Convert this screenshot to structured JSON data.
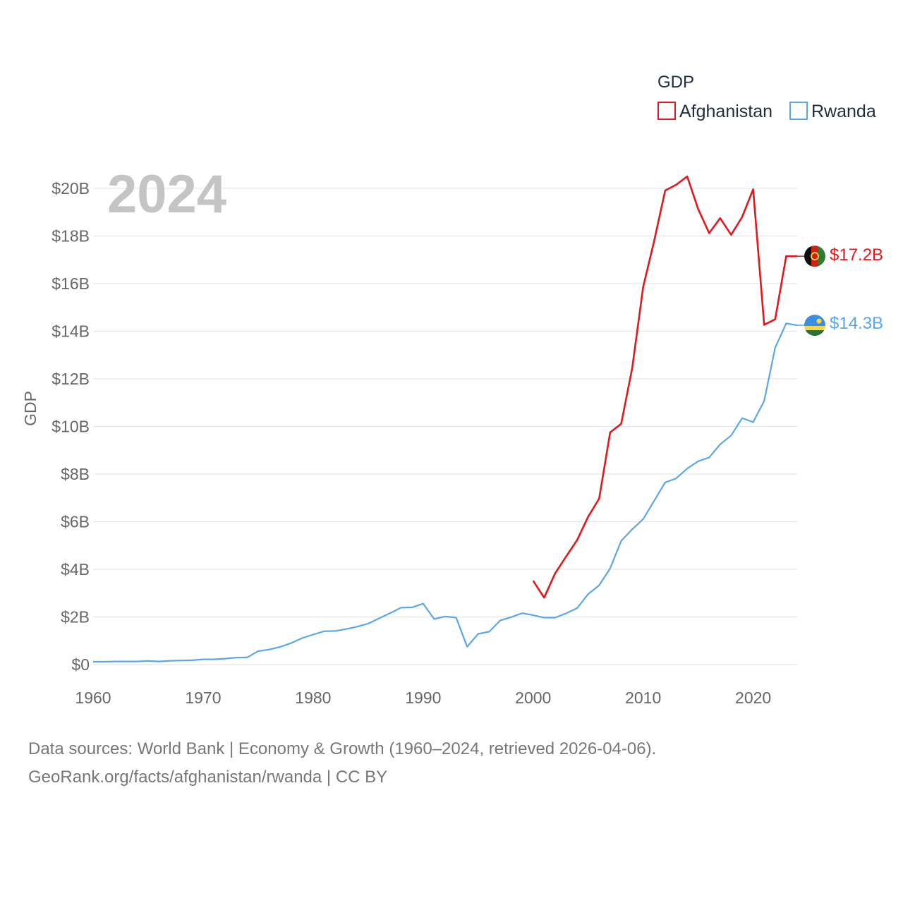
{
  "chart_data": {
    "type": "line",
    "ylabel": "GDP",
    "current_year_label": "2024",
    "legend_title": "GDP",
    "ylim": [
      0,
      20
    ],
    "xlim": [
      1960,
      2024
    ],
    "y_ticks": [
      {
        "value": 0,
        "label": "$0"
      },
      {
        "value": 2,
        "label": "$2B"
      },
      {
        "value": 4,
        "label": "$4B"
      },
      {
        "value": 6,
        "label": "$6B"
      },
      {
        "value": 8,
        "label": "$8B"
      },
      {
        "value": 10,
        "label": "$10B"
      },
      {
        "value": 12,
        "label": "$12B"
      },
      {
        "value": 14,
        "label": "$14B"
      },
      {
        "value": 16,
        "label": "$16B"
      },
      {
        "value": 18,
        "label": "$18B"
      },
      {
        "value": 20,
        "label": "$20B"
      }
    ],
    "x_ticks": [
      {
        "value": 1960,
        "label": "1960"
      },
      {
        "value": 1970,
        "label": "1970"
      },
      {
        "value": 1980,
        "label": "1980"
      },
      {
        "value": 1990,
        "label": "1990"
      },
      {
        "value": 2000,
        "label": "2000"
      },
      {
        "value": 2010,
        "label": "2010"
      },
      {
        "value": 2020,
        "label": "2020"
      }
    ],
    "series": [
      {
        "name": "Afghanistan",
        "color": "#e8161b",
        "end_label": "$17.2B",
        "flag": "afghanistan-flag",
        "x": [
          2000,
          2001,
          2002,
          2003,
          2004,
          2005,
          2006,
          2007,
          2008,
          2009,
          2010,
          2011,
          2012,
          2013,
          2014,
          2015,
          2016,
          2017,
          2018,
          2019,
          2020,
          2021,
          2022,
          2023,
          2024
        ],
        "values": [
          3.52,
          2.81,
          3.83,
          4.54,
          5.23,
          6.21,
          6.97,
          9.75,
          10.11,
          12.44,
          15.86,
          17.8,
          19.91,
          20.15,
          20.5,
          19.13,
          18.12,
          18.75,
          18.05,
          18.8,
          19.96,
          14.27,
          14.5,
          17.15,
          17.15
        ]
      },
      {
        "name": "Rwanda",
        "color": "#5ba7e6",
        "end_label": "$14.3B",
        "flag": "rwanda-flag",
        "x": [
          1960,
          1961,
          1962,
          1963,
          1964,
          1965,
          1966,
          1967,
          1968,
          1969,
          1970,
          1971,
          1972,
          1973,
          1974,
          1975,
          1976,
          1977,
          1978,
          1979,
          1980,
          1981,
          1982,
          1983,
          1984,
          1985,
          1986,
          1987,
          1988,
          1989,
          1990,
          1991,
          1992,
          1993,
          1994,
          1995,
          1996,
          1997,
          1998,
          1999,
          2000,
          2001,
          2002,
          2003,
          2004,
          2005,
          2006,
          2007,
          2008,
          2009,
          2010,
          2011,
          2012,
          2013,
          2014,
          2015,
          2016,
          2017,
          2018,
          2019,
          2020,
          2021,
          2022,
          2023,
          2024
        ],
        "values": [
          0.12,
          0.12,
          0.13,
          0.13,
          0.13,
          0.15,
          0.13,
          0.16,
          0.17,
          0.18,
          0.22,
          0.22,
          0.25,
          0.29,
          0.3,
          0.56,
          0.63,
          0.74,
          0.9,
          1.11,
          1.26,
          1.4,
          1.41,
          1.49,
          1.59,
          1.72,
          1.94,
          2.16,
          2.39,
          2.4,
          2.56,
          1.91,
          2.02,
          1.97,
          0.75,
          1.29,
          1.38,
          1.85,
          1.99,
          2.16,
          2.07,
          1.97,
          1.97,
          2.15,
          2.37,
          2.96,
          3.33,
          4.04,
          5.19,
          5.68,
          6.11,
          6.88,
          7.65,
          7.82,
          8.23,
          8.54,
          8.7,
          9.25,
          9.62,
          10.35,
          10.18,
          11.07,
          13.31,
          14.33,
          14.25
        ]
      }
    ]
  },
  "source": {
    "line1": "Data sources: World Bank | Economy & Growth (1960–2024, retrieved 2026-04-06).",
    "line2": "GeoRank.org/facts/afghanistan/rwanda | CC BY"
  }
}
